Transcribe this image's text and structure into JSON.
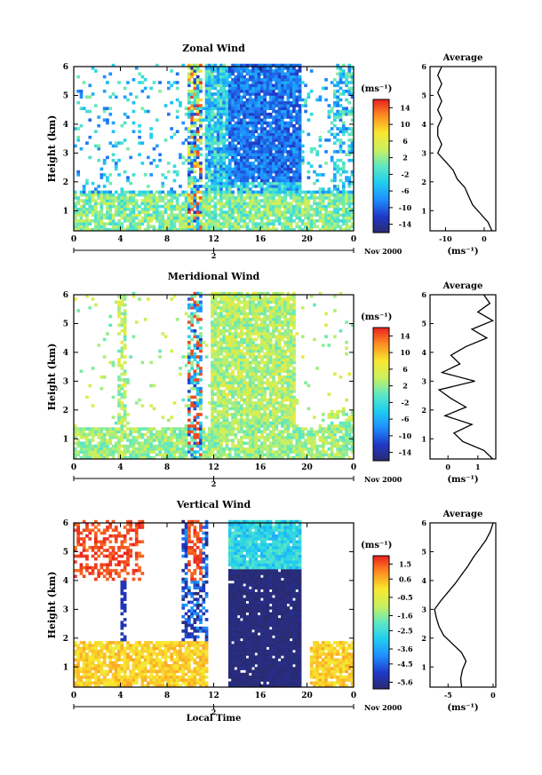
{
  "chart_data": [
    {
      "type": "heatmap",
      "title": "Zonal Wind",
      "ylabel": "Height (km)",
      "xlabel": "",
      "x_ticks": [
        "0",
        "4",
        "8",
        "12",
        "16",
        "20",
        "0"
      ],
      "y_ticks": [
        "1",
        "2",
        "3",
        "4",
        "5",
        "6"
      ],
      "xlim": [
        0,
        24
      ],
      "ylim": [
        0.3,
        6
      ],
      "date_ticks": [
        "2"
      ],
      "date_label": "Nov 2000",
      "colorbar": {
        "unit": "(ms⁻¹)",
        "range": [
          -16,
          16
        ],
        "ticks": [
          "14",
          "10",
          "6",
          "2",
          "-2",
          "-6",
          "-10",
          "-14"
        ]
      },
      "average": {
        "title": "Average",
        "xlabel": "(ms⁻¹)",
        "x_ticks": [
          "-10",
          "0"
        ],
        "xlim": [
          -14,
          3
        ],
        "heights": [
          0.3,
          0.6,
          0.9,
          1.2,
          1.5,
          1.8,
          2.1,
          2.4,
          2.7,
          3.0,
          3.3,
          3.6,
          3.9,
          4.2,
          4.5,
          4.8,
          5.1,
          5.4,
          5.7,
          6.0
        ],
        "values": [
          2,
          1,
          -1,
          -3,
          -4,
          -5,
          -7,
          -8,
          -10,
          -12,
          -11,
          -12,
          -12,
          -11,
          -12,
          -11,
          -12,
          -11,
          -12,
          -11
        ]
      }
    },
    {
      "type": "heatmap",
      "title": "Meridional Wind",
      "ylabel": "Height (km)",
      "xlabel": "",
      "x_ticks": [
        "0",
        "4",
        "8",
        "12",
        "16",
        "20",
        "0"
      ],
      "y_ticks": [
        "1",
        "2",
        "3",
        "4",
        "5",
        "6"
      ],
      "xlim": [
        0,
        24
      ],
      "ylim": [
        0.3,
        6
      ],
      "date_ticks": [
        "2"
      ],
      "date_label": "Nov 2000",
      "colorbar": {
        "unit": "(ms⁻¹)",
        "range": [
          -16,
          16
        ],
        "ticks": [
          "14",
          "10",
          "6",
          "2",
          "-2",
          "-6",
          "-10",
          "-14"
        ]
      },
      "average": {
        "title": "Average",
        "xlabel": "(ms⁻¹)",
        "x_ticks": [
          "0",
          "1"
        ],
        "xlim": [
          -0.6,
          1.6
        ],
        "heights": [
          0.3,
          0.6,
          0.9,
          1.2,
          1.5,
          1.8,
          2.1,
          2.4,
          2.7,
          3.0,
          3.3,
          3.6,
          3.9,
          4.2,
          4.5,
          4.8,
          5.1,
          5.4,
          5.7,
          6.0
        ],
        "values": [
          1.5,
          1.2,
          0.5,
          0.2,
          0.8,
          -0.1,
          0.6,
          0.1,
          -0.3,
          0.9,
          -0.2,
          0.4,
          0.1,
          0.6,
          1.3,
          0.8,
          1.5,
          1.0,
          1.4,
          1.2
        ]
      }
    },
    {
      "type": "heatmap",
      "title": "Vertical Wind",
      "ylabel": "Height (km)",
      "xlabel": "Local Time",
      "x_ticks": [
        "0",
        "4",
        "8",
        "12",
        "16",
        "20",
        "0"
      ],
      "y_ticks": [
        "1",
        "2",
        "3",
        "4",
        "5",
        "6"
      ],
      "xlim": [
        0,
        24
      ],
      "ylim": [
        0.3,
        6
      ],
      "date_ticks": [
        "2"
      ],
      "date_label": "Nov 2000",
      "colorbar": {
        "unit": "(ms⁻¹)",
        "range": [
          -6.0,
          2.0
        ],
        "ticks": [
          "1.5",
          "0.6",
          "-0.5",
          "-1.6",
          "-2.5",
          "-3.6",
          "-4.5",
          "-5.6"
        ]
      },
      "average": {
        "title": "Average",
        "xlabel": "(ms⁻¹)",
        "x_ticks": [
          "-5",
          "0"
        ],
        "xlim": [
          -7,
          0.3
        ],
        "heights": [
          0.3,
          0.6,
          0.9,
          1.2,
          1.5,
          1.8,
          2.1,
          2.4,
          2.7,
          3.0,
          3.3,
          3.6,
          3.9,
          4.2,
          4.5,
          4.8,
          5.1,
          5.4,
          5.7,
          6.0
        ],
        "values": [
          -3.5,
          -3.6,
          -3.4,
          -3.0,
          -3.5,
          -4.5,
          -5.5,
          -6.0,
          -6.3,
          -6.5,
          -5.8,
          -5.0,
          -4.2,
          -3.5,
          -2.8,
          -2.2,
          -1.5,
          -0.8,
          -0.3,
          0.0
        ]
      }
    }
  ]
}
